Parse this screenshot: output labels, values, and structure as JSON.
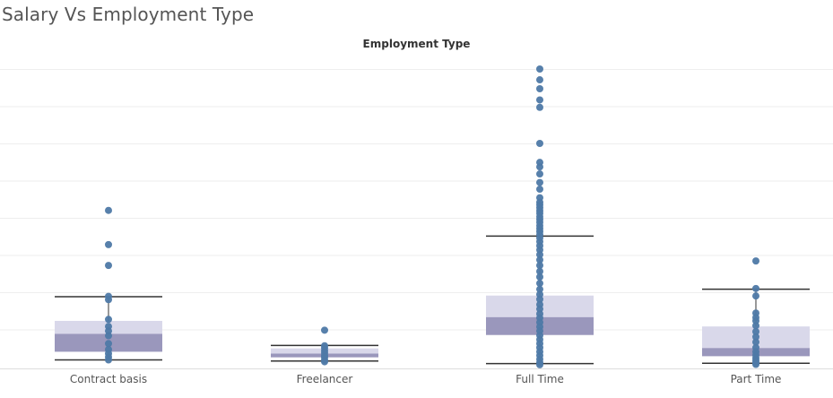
{
  "title": "Salary Vs Employment Type",
  "chart_data": {
    "type": "boxplot",
    "column_header": "Employment Type",
    "ylim": [
      0,
      80
    ],
    "grid": true,
    "colors": {
      "point": "#4e79a7",
      "box_upper": "#d9d8ea",
      "box_lower": "#9a97bc",
      "whisker": "#333333",
      "grid": "#eeeeee"
    },
    "categories": [
      {
        "label": "Contract basis",
        "whisker_low": 1.8,
        "q1": 4.0,
        "median": 8.8,
        "q3": 12.3,
        "whisker_high": 18.8,
        "points": [
          42,
          32.8,
          27.2,
          18.9,
          18.0,
          12.7,
          10.8,
          9.6,
          8.3,
          6.2,
          4.6,
          3.5,
          2.6,
          1.8
        ]
      },
      {
        "label": "Freelancer",
        "whisker_low": 1.5,
        "q1": 2.5,
        "median": 3.5,
        "q3": 4.9,
        "whisker_high": 5.7,
        "points": [
          9.8,
          5.6,
          5.0,
          4.3,
          3.7,
          3.0,
          2.5,
          1.8,
          1.3
        ]
      },
      {
        "label": "Full Time",
        "whisker_low": 0.8,
        "q1": 8.5,
        "median": 13.3,
        "q3": 19.1,
        "whisker_high": 35.1,
        "points": [
          80,
          77.1,
          74.7,
          71.7,
          69.7,
          60,
          54.9,
          53.7,
          51.8,
          49.5,
          47.7,
          45.4,
          44.2,
          43.5,
          42.7,
          41.9,
          41.2,
          40.3,
          39.6,
          38.8,
          37.9,
          37.1,
          36.3,
          35.5,
          34.6,
          33.6,
          32.5,
          31.4,
          30.1,
          28.7,
          27.2,
          25.6,
          24.1,
          22.4,
          20.8,
          19.4,
          18.1,
          16.7,
          15.5,
          14.2,
          13.1,
          11.9,
          10.7,
          9.6,
          8.4,
          7.3,
          6.2,
          5.1,
          4.0,
          3.0,
          2.0,
          1.1,
          0.5
        ]
      },
      {
        "label": "Part Time",
        "whisker_low": 0.9,
        "q1": 2.8,
        "median": 5.0,
        "q3": 10.8,
        "whisker_high": 20.8,
        "points": [
          28.4,
          21.0,
          19.0,
          14.4,
          13.2,
          12.3,
          11.0,
          9.4,
          8.0,
          6.6,
          5.1,
          4.0,
          3.1,
          2.3,
          1.6,
          1.0,
          0.6
        ]
      }
    ]
  }
}
